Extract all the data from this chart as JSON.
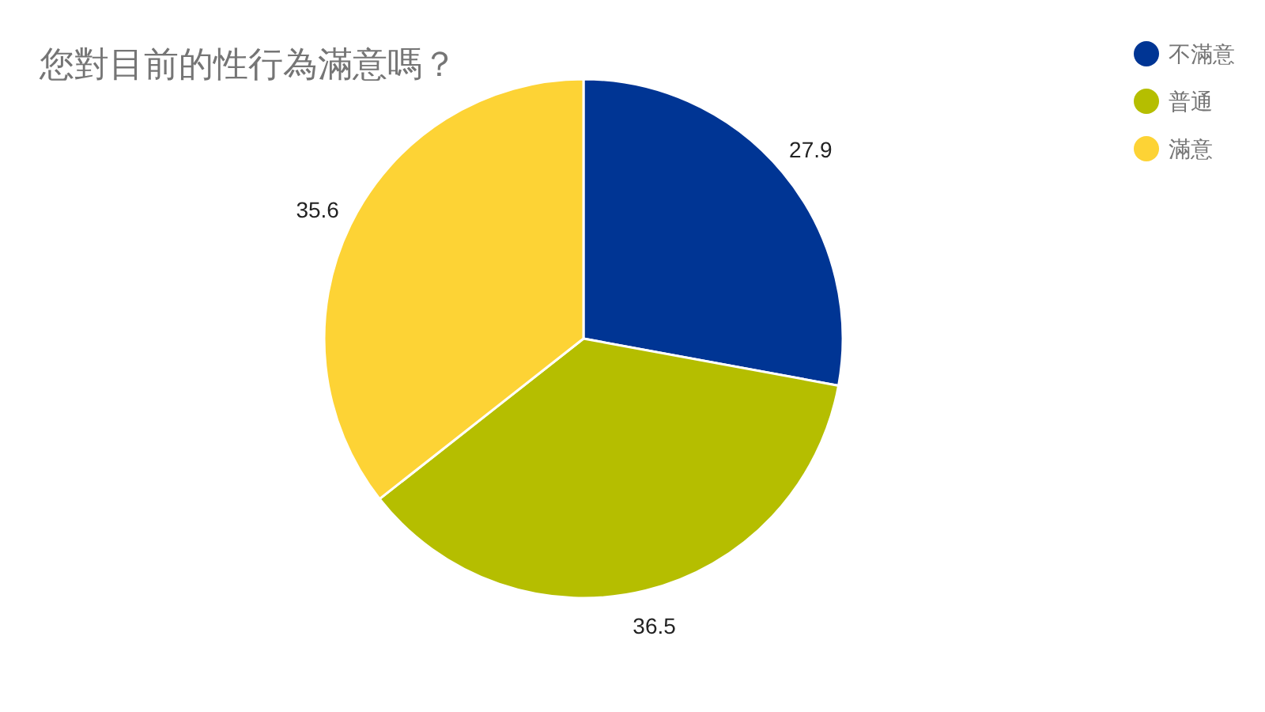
{
  "chart_data": {
    "type": "pie",
    "title": "您對目前的性行為滿意嗎？",
    "categories": [
      "不滿意",
      "普通",
      "滿意"
    ],
    "values": [
      27.9,
      36.5,
      35.6
    ],
    "colors": [
      "#003594",
      "#b5be00",
      "#fdd335"
    ],
    "data_labels": true,
    "legend": "top right"
  }
}
